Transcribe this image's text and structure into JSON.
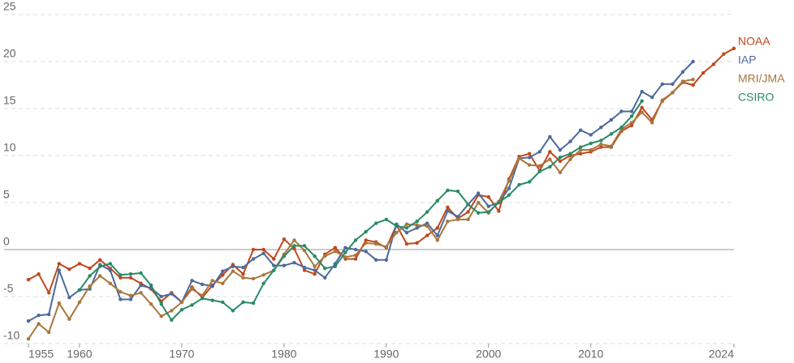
{
  "chart_data": {
    "type": "line",
    "x": [
      1955,
      1956,
      1957,
      1958,
      1959,
      1960,
      1961,
      1962,
      1963,
      1964,
      1965,
      1966,
      1967,
      1968,
      1969,
      1970,
      1971,
      1972,
      1973,
      1974,
      1975,
      1976,
      1977,
      1978,
      1979,
      1980,
      1981,
      1982,
      1983,
      1984,
      1985,
      1986,
      1987,
      1988,
      1989,
      1990,
      1991,
      1992,
      1993,
      1994,
      1995,
      1996,
      1997,
      1998,
      1999,
      2000,
      2001,
      2002,
      2003,
      2004,
      2005,
      2006,
      2007,
      2008,
      2009,
      2010,
      2011,
      2012,
      2013,
      2014,
      2015,
      2016,
      2017,
      2018,
      2019,
      2020,
      2021,
      2022,
      2023,
      2024
    ],
    "series": [
      {
        "name": "NOAA",
        "color": "#c0471b",
        "values": [
          -3.2,
          -2.6,
          -4.6,
          -1.5,
          -2.1,
          -1.5,
          -2.0,
          -1.1,
          -2.0,
          -3.0,
          -3.0,
          -3.6,
          -4.2,
          -5.5,
          -4.6,
          -5.6,
          -4.0,
          -5.1,
          -3.8,
          -2.7,
          -1.6,
          -2.6,
          0.0,
          0.0,
          -1.0,
          1.1,
          0.1,
          -2.2,
          -2.6,
          -0.5,
          0.2,
          -1.0,
          -1.0,
          1.0,
          0.8,
          0.2,
          2.6,
          0.6,
          0.7,
          1.5,
          2.3,
          4.5,
          3.3,
          4.0,
          5.8,
          5.6,
          4.1,
          7.5,
          9.9,
          10.2,
          8.4,
          10.4,
          9.4,
          10.0,
          10.2,
          10.4,
          10.9,
          10.9,
          12.6,
          13.2,
          15.1,
          13.8,
          15.8,
          16.7,
          17.8,
          17.5,
          18.8,
          19.7,
          20.8,
          21.4
        ]
      },
      {
        "name": "IAP",
        "color": "#4c6a9c",
        "values": [
          -7.6,
          -7.0,
          -6.9,
          -2.2,
          -5.1,
          -4.3,
          -4.2,
          -1.6,
          -2.2,
          -5.3,
          -5.3,
          -3.8,
          -4.1,
          -5.0,
          -4.7,
          -5.6,
          -3.3,
          -3.7,
          -3.9,
          -2.3,
          -1.8,
          -1.9,
          -1.0,
          -0.4,
          -1.7,
          -1.7,
          -1.4,
          -1.9,
          -2.2,
          -3.0,
          -1.5,
          0.2,
          0.0,
          -0.2,
          -1.1,
          -1.1,
          2.7,
          1.8,
          2.3,
          2.8,
          1.5,
          4.1,
          3.5,
          4.8,
          6.0,
          4.6,
          5.0,
          6.5,
          9.7,
          9.8,
          10.4,
          12.0,
          10.6,
          11.5,
          12.7,
          12.2,
          13.0,
          13.8,
          14.7,
          14.7,
          16.8,
          16.2,
          17.6,
          17.6,
          18.9,
          20.0,
          null,
          null,
          null,
          null
        ]
      },
      {
        "name": "MRI/JMA",
        "color": "#a8773d",
        "values": [
          -9.5,
          -7.9,
          -8.8,
          -5.7,
          -7.4,
          -5.6,
          -3.9,
          -2.8,
          -3.6,
          -4.5,
          -4.9,
          -4.6,
          -5.8,
          -7.1,
          -6.5,
          -5.6,
          -4.2,
          -4.9,
          -3.3,
          -3.6,
          -2.3,
          -3.0,
          -3.1,
          -2.7,
          -2.2,
          -0.5,
          1.0,
          -0.1,
          -1.8,
          -0.7,
          -0.2,
          -0.8,
          -0.6,
          0.7,
          0.6,
          0.3,
          1.8,
          2.7,
          2.6,
          2.5,
          1.0,
          3.0,
          3.2,
          3.2,
          5.0,
          3.9,
          5.1,
          7.3,
          9.7,
          9.0,
          8.9,
          9.6,
          8.2,
          9.6,
          10.6,
          10.6,
          11.2,
          11.0,
          12.8,
          13.5,
          14.6,
          13.5,
          15.9,
          16.7,
          17.9,
          18.1,
          null,
          null,
          null,
          null
        ]
      },
      {
        "name": "CSIRO",
        "color": "#2a8a66",
        "values": [
          null,
          null,
          null,
          null,
          null,
          -4.3,
          -2.8,
          -1.8,
          -1.5,
          -2.7,
          -2.6,
          -2.5,
          -3.8,
          -5.8,
          -7.5,
          -6.4,
          -5.9,
          -5.2,
          -5.4,
          -5.6,
          -6.5,
          -5.6,
          -5.7,
          -3.6,
          -2.2,
          -0.7,
          0.4,
          0.4,
          -0.7,
          -2.0,
          -1.8,
          -0.3,
          1.0,
          1.9,
          2.8,
          3.2,
          2.5,
          2.3,
          3.0,
          4.0,
          5.2,
          6.3,
          6.2,
          4.8,
          3.9,
          4.0,
          5.0,
          5.8,
          6.9,
          7.2,
          8.3,
          8.8,
          9.8,
          10.2,
          10.9,
          11.3,
          11.6,
          12.3,
          13.0,
          14.2,
          15.8,
          null,
          null,
          null,
          null,
          null,
          null,
          null,
          null,
          null
        ]
      }
    ],
    "xlim": [
      1955,
      2024
    ],
    "xticks": [
      1955,
      1960,
      1970,
      1980,
      1990,
      2000,
      2010,
      2024
    ],
    "ylim": [
      -10,
      25
    ],
    "yticks": [
      -10,
      -5,
      0,
      5,
      10,
      15,
      20,
      25
    ],
    "grid": true
  }
}
